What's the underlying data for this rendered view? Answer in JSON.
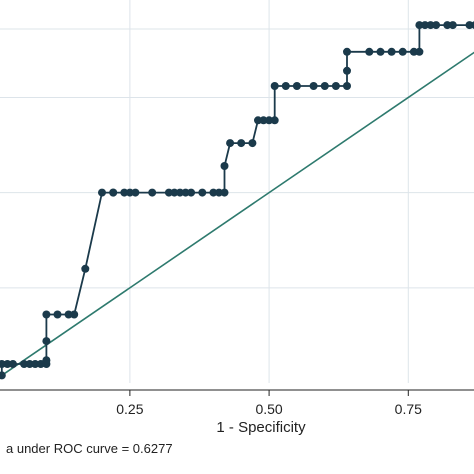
{
  "chart_data": {
    "type": "line",
    "xlabel": "1 - Specificity",
    "ylabel": "",
    "xlim": [
      0,
      0.9
    ],
    "ylim": [
      0,
      1
    ],
    "x_ticks": [
      0.25,
      0.5,
      0.75
    ],
    "x_tick_labels": [
      "0.25",
      "0.50",
      "0.75"
    ],
    "y_gridlines": [
      0.25,
      0.5,
      0.75
    ],
    "grid": true,
    "legend": "none",
    "annotation": "a under ROC curve = 0.6277",
    "colors": {
      "roc": "#1b3a4b",
      "reference": "#2e7a6e",
      "grid": "#dde4ea",
      "axis": "#222222"
    },
    "series": [
      {
        "x": [
          0,
          0.01,
          0.02,
          0.02,
          0.03,
          0.04,
          0.06,
          0.07,
          0.08,
          0.09,
          0.1,
          0.1,
          0.1,
          0.1,
          0.12,
          0.14,
          0.15,
          0.17,
          0.2,
          0.22,
          0.22,
          0.24,
          0.25,
          0.26,
          0.29,
          0.32,
          0.33,
          0.34,
          0.35,
          0.36,
          0.38,
          0.4,
          0.41,
          0.42,
          0.42,
          0.43,
          0.45,
          0.47,
          0.48,
          0.49,
          0.5,
          0.51,
          0.51,
          0.53,
          0.55,
          0.58,
          0.6,
          0.62,
          0.64,
          0.64,
          0.64,
          0.68,
          0.7,
          0.72,
          0.74,
          0.76,
          0.77,
          0.77,
          0.78,
          0.79,
          0.8,
          0.82,
          0.83,
          0.86,
          0.87,
          0.88,
          0.89,
          0.9
        ],
        "y": [
          0.02,
          0.02,
          0.02,
          0.05,
          0.05,
          0.05,
          0.05,
          0.05,
          0.05,
          0.05,
          0.05,
          0.06,
          0.11,
          0.18,
          0.18,
          0.18,
          0.18,
          0.3,
          0.5,
          0.5,
          0.5,
          0.5,
          0.5,
          0.5,
          0.5,
          0.5,
          0.5,
          0.5,
          0.5,
          0.5,
          0.5,
          0.5,
          0.5,
          0.5,
          0.57,
          0.63,
          0.63,
          0.63,
          0.69,
          0.69,
          0.69,
          0.69,
          0.78,
          0.78,
          0.78,
          0.78,
          0.78,
          0.78,
          0.78,
          0.82,
          0.87,
          0.87,
          0.87,
          0.87,
          0.87,
          0.87,
          0.87,
          0.94,
          0.94,
          0.94,
          0.94,
          0.94,
          0.94,
          0.94,
          0.94,
          0.96,
          0.96,
          1.0
        ]
      },
      {
        "x": [
          0,
          0.9
        ],
        "y": [
          0,
          0.9
        ]
      }
    ]
  }
}
